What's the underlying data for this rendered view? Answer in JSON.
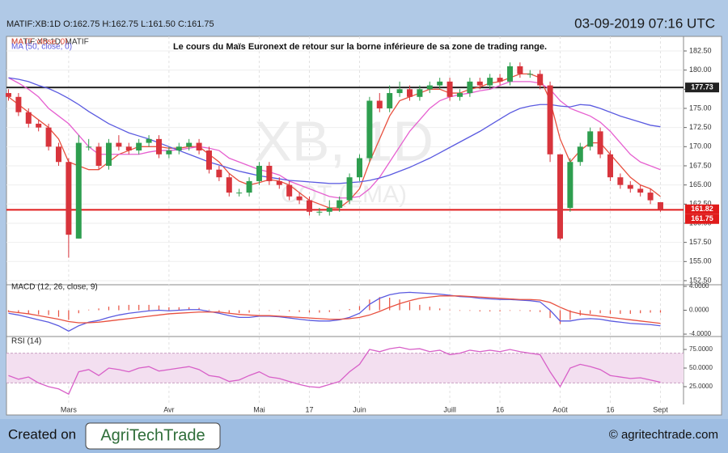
{
  "header": {
    "symbol_line": "MATIF:XB:1D O:162.75 H:162.75 L:161.50 C:161.75",
    "timestamp": "03-09-2019 07:16 UTC"
  },
  "footer": {
    "created_on": "Created on",
    "logo": "AgriTechTrade",
    "website": "© agritechtrade.com"
  },
  "chart_data": [
    {
      "type": "candlestick",
      "annotation": "Le cours du Maïs Euronext de retour sur la borne inférieure de sa zone de trading range.",
      "watermark": [
        "XB, 1D",
        "COT (EMA)"
      ],
      "legend_title": "MATIF:XB:1D, MATIF",
      "up_color": "#2e9e4f",
      "down_color": "#d8343c",
      "open": [
        177,
        176.5,
        174.5,
        173,
        172.5,
        170,
        168,
        158,
        170,
        170,
        167.5,
        170.5,
        170,
        169.5,
        170.5,
        171,
        169,
        169.5,
        170,
        170.5,
        169.5,
        167,
        166,
        164,
        164,
        165.5,
        167.5,
        165.5,
        165,
        163.5,
        163,
        161.5,
        161.5,
        162,
        163,
        166,
        168.5,
        176,
        175,
        177,
        177.5,
        176.5,
        177.5,
        178,
        178.5,
        176.5,
        177,
        178.5,
        178,
        179,
        178.5,
        180.5,
        179.5,
        179.5,
        178,
        169,
        162,
        168,
        170,
        172,
        169,
        166,
        165,
        164.5,
        164,
        162.75
      ],
      "high": [
        177.5,
        177,
        175,
        173.5,
        173,
        170.5,
        168.5,
        171.5,
        171,
        170.5,
        171,
        171.5,
        170.5,
        171,
        171.5,
        171.5,
        170,
        170.5,
        171,
        171,
        170,
        167.5,
        166.5,
        164.5,
        166,
        168,
        168,
        166,
        165.5,
        164,
        163.5,
        162,
        163,
        163.5,
        166.5,
        169,
        176.5,
        177,
        178,
        178.5,
        178,
        178,
        178.5,
        179,
        179,
        177.5,
        179,
        179,
        179.5,
        179.5,
        181,
        181,
        180,
        180,
        178.5,
        169,
        168.5,
        170.5,
        172.5,
        172.5,
        169.5,
        166.5,
        165.5,
        165,
        164.5,
        162.75
      ],
      "low": [
        176,
        174,
        172.5,
        172,
        169.5,
        167.5,
        155.5,
        158,
        169.5,
        167,
        167,
        169.5,
        169,
        169,
        170,
        168.5,
        168.5,
        169,
        169.5,
        169,
        166.5,
        165.5,
        163.5,
        163.5,
        163.5,
        165,
        165,
        164.5,
        163,
        162.5,
        161,
        161,
        161,
        161.5,
        162.5,
        165.5,
        168,
        174.5,
        174.5,
        176.5,
        176,
        176,
        177,
        177.5,
        176,
        176,
        176.5,
        177.5,
        177.5,
        178,
        178,
        179,
        179,
        177.5,
        168,
        157.8,
        161.5,
        167.5,
        169.5,
        168.5,
        165.5,
        164.5,
        164,
        163.5,
        162.5,
        161.5
      ],
      "close": [
        176.5,
        174.5,
        173,
        172.5,
        170,
        168,
        158.5,
        170.5,
        170,
        167.5,
        170.5,
        170,
        169.5,
        170.5,
        171,
        169,
        169.5,
        170,
        170.5,
        169.5,
        167,
        166,
        164,
        164,
        165.5,
        167.5,
        165.5,
        165,
        163.5,
        163,
        161.5,
        161.5,
        162,
        163,
        166,
        168.5,
        176,
        175,
        177,
        177.5,
        176.5,
        177.5,
        178,
        178.5,
        176.5,
        177,
        178.5,
        178,
        179,
        178.5,
        180.5,
        179.5,
        179.5,
        178,
        169,
        158,
        168,
        170,
        172,
        169,
        166,
        165,
        164.5,
        164,
        163,
        161.75
      ],
      "series": [
        {
          "name": "MA (7, close, 0)",
          "color": "#e8503f",
          "values": [
            176.5,
            175.5,
            174.5,
            173.5,
            172.5,
            171,
            168,
            167.5,
            167,
            167,
            168,
            169,
            169.5,
            170,
            170,
            170,
            169.8,
            169.8,
            170,
            170,
            169,
            168,
            166.5,
            165.5,
            165,
            165.3,
            165.7,
            165.5,
            165,
            164,
            163,
            162.5,
            162,
            162,
            163,
            164.5,
            168,
            171,
            174,
            176,
            176.5,
            177,
            177.5,
            177.5,
            177,
            177,
            177.5,
            177.8,
            178.3,
            178.5,
            179,
            179.5,
            179.5,
            179,
            176,
            171,
            168,
            169.5,
            170.5,
            170.5,
            169,
            167.5,
            166,
            165,
            164.5,
            163.5
          ]
        },
        {
          "color": "#e660d0",
          "values": [
            179,
            178.3,
            177.5,
            176.5,
            175,
            174,
            173,
            171.5,
            170,
            169,
            169,
            169,
            169,
            169,
            169.3,
            169.5,
            169.5,
            169.6,
            169.8,
            170,
            169.8,
            169.5,
            168.5,
            168,
            167.5,
            167,
            166.7,
            166.3,
            165.5,
            165,
            164.5,
            164,
            163.5,
            163.3,
            163.3,
            163.5,
            164.5,
            166,
            168,
            170,
            172,
            173.5,
            175,
            176,
            176.5,
            176.8,
            177,
            177.3,
            177.5,
            178,
            178.5,
            178.5,
            178.5,
            178.3,
            177.5,
            176,
            175,
            174.5,
            174,
            173.2,
            172,
            170.5,
            169,
            168,
            167.5,
            167
          ]
        },
        {
          "name": "MA (50, close, 0)",
          "color": "#5a5ae0",
          "values": [
            179,
            178.8,
            178.5,
            178,
            177.6,
            177,
            176.3,
            175.5,
            174.6,
            173.8,
            173,
            172.4,
            171.8,
            171.4,
            171,
            170.5,
            170,
            169.5,
            169,
            168.5,
            168,
            167.6,
            167.2,
            166.8,
            166.5,
            166.2,
            166,
            165.8,
            165.6,
            165.5,
            165.4,
            165.3,
            165.2,
            165.2,
            165.3,
            165.4,
            165.6,
            165.9,
            166.3,
            166.8,
            167.3,
            167.9,
            168.5,
            169.2,
            169.9,
            170.6,
            171.3,
            172,
            172.8,
            173.6,
            174.4,
            175,
            175.3,
            175.5,
            175.5,
            175.3,
            175.2,
            175.5,
            175.4,
            175,
            174.5,
            174,
            173.6,
            173.2,
            172.8,
            172.6
          ]
        }
      ],
      "hlines": [
        {
          "value": 177.73,
          "color": "#222222"
        },
        {
          "value": 161.75,
          "color": "#e01b1b"
        }
      ],
      "price_labels": [
        {
          "value": 177.73,
          "color": "#222222"
        },
        {
          "value": 161.82,
          "color": "#e01b1b"
        },
        {
          "value": 161.75,
          "color": "#e01b1b"
        }
      ],
      "xlim": [
        -0.2,
        67.3
      ],
      "xticks": [
        {
          "value": 6,
          "label": "Mars"
        },
        {
          "value": 16,
          "label": "Avr"
        },
        {
          "value": 25,
          "label": "Mai"
        },
        {
          "value": 30,
          "label": "17"
        },
        {
          "value": 35,
          "label": "Juin"
        },
        {
          "value": 44,
          "label": "Juill"
        },
        {
          "value": 49,
          "label": "16"
        },
        {
          "value": 55,
          "label": "Août"
        },
        {
          "value": 60,
          "label": "16"
        },
        {
          "value": 65,
          "label": "Sept"
        }
      ],
      "ylim": [
        152.18,
        184.4
      ],
      "yticks": [
        {
          "value": 152.5,
          "label": "152.50"
        },
        {
          "value": 155,
          "label": "155.00"
        },
        {
          "value": 157.5,
          "label": "157.50"
        },
        {
          "value": 160,
          "label": "160.00"
        },
        {
          "value": 162.5,
          "label": "162.50"
        },
        {
          "value": 165,
          "label": "165.00"
        },
        {
          "value": 167.5,
          "label": "167.50"
        },
        {
          "value": 170,
          "label": "170.00"
        },
        {
          "value": 172.5,
          "label": "172.50"
        },
        {
          "value": 175,
          "label": "175.00"
        },
        {
          "value": 177.5,
          "label": "177.50"
        },
        {
          "value": 180,
          "label": "180.00"
        },
        {
          "value": 182.5,
          "label": "182.50"
        }
      ],
      "grid": true
    },
    {
      "type": "macd",
      "title": "MACD (12, 26, close, 9)",
      "series": [
        {
          "color": "#5a5ae0",
          "values": [
            -0.5,
            -0.8,
            -1.2,
            -1.6,
            -2,
            -2.6,
            -3.5,
            -2.6,
            -2.0,
            -1.7,
            -1.2,
            -0.8,
            -0.5,
            -0.3,
            -0.1,
            0,
            -0.1,
            0,
            0.1,
            0.1,
            -0.2,
            -0.5,
            -0.9,
            -1.2,
            -1.2,
            -1.0,
            -1.0,
            -1.1,
            -1.3,
            -1.5,
            -1.7,
            -1.8,
            -1.8,
            -1.6,
            -1.2,
            -0.5,
            1,
            2,
            2.6,
            2.9,
            3,
            2.9,
            2.8,
            2.7,
            2.5,
            2.3,
            2.2,
            2.0,
            1.9,
            1.8,
            1.8,
            1.7,
            1.6,
            1.4,
            0,
            -1.8,
            -1.8,
            -1.5,
            -1.4,
            -1.5,
            -1.8,
            -2,
            -2.2,
            -2.3,
            -2.4,
            -2.6
          ]
        },
        {
          "color": "#e8503f",
          "values": [
            -0.2,
            -0.4,
            -0.6,
            -0.9,
            -1.2,
            -1.5,
            -1.9,
            -2.1,
            -2.1,
            -2.0,
            -1.8,
            -1.6,
            -1.4,
            -1.2,
            -1.0,
            -0.8,
            -0.6,
            -0.5,
            -0.4,
            -0.3,
            -0.3,
            -0.3,
            -0.5,
            -0.7,
            -0.8,
            -0.9,
            -0.9,
            -1.0,
            -1.1,
            -1.2,
            -1.3,
            -1.4,
            -1.5,
            -1.5,
            -1.4,
            -1.2,
            -0.8,
            -0.2,
            0.5,
            1.1,
            1.6,
            2,
            2.2,
            2.4,
            2.4,
            2.4,
            2.3,
            2.2,
            2.1,
            2.0,
            1.9,
            1.8,
            1.8,
            1.7,
            1.3,
            0.5,
            -0.2,
            -0.6,
            -0.8,
            -1.0,
            -1.2,
            -1.4,
            -1.6,
            -1.8,
            -2.0,
            -2.2
          ]
        }
      ],
      "histogram": {
        "color": "#e8503f",
        "values": [
          -0.3,
          -0.4,
          -0.6,
          -0.7,
          -0.8,
          -1.1,
          -1.6,
          -0.5,
          0.1,
          0.3,
          0.6,
          0.8,
          0.9,
          0.9,
          0.9,
          0.8,
          0.5,
          0.5,
          0.5,
          0.4,
          0.1,
          -0.2,
          -0.4,
          -0.5,
          -0.4,
          -0.1,
          -0.1,
          -0.1,
          -0.2,
          -0.3,
          -0.4,
          -0.4,
          -0.3,
          -0.1,
          0.2,
          0.7,
          1.8,
          2.2,
          2.1,
          1.8,
          1.4,
          0.9,
          0.6,
          0.3,
          0.1,
          -0.1,
          -0.1,
          -0.2,
          -0.2,
          -0.2,
          -0.1,
          -0.1,
          -0.2,
          -0.3,
          -1.3,
          -2.3,
          -1.6,
          -0.9,
          -0.6,
          -0.5,
          -0.6,
          -0.6,
          -0.6,
          -0.5,
          -0.4,
          -0.4
        ]
      },
      "ylim": [
        -4.4,
        4.27
      ],
      "yticks": [
        {
          "value": -4,
          "label": "-4.0000"
        },
        {
          "value": 0,
          "label": "0.0000"
        },
        {
          "value": 4,
          "label": "4.0000"
        }
      ]
    },
    {
      "type": "rsi",
      "title": "RSI (14)",
      "series": [
        {
          "color": "#d860c8",
          "values": [
            40,
            35,
            38,
            30,
            25,
            22,
            15,
            45,
            48,
            40,
            50,
            48,
            45,
            50,
            52,
            46,
            48,
            50,
            52,
            48,
            40,
            38,
            32,
            34,
            40,
            45,
            38,
            36,
            32,
            28,
            25,
            24,
            28,
            32,
            45,
            55,
            75,
            72,
            76,
            78,
            75,
            76,
            72,
            74,
            68,
            70,
            74,
            72,
            74,
            72,
            75,
            72,
            70,
            68,
            45,
            25,
            50,
            55,
            52,
            48,
            40,
            38,
            36,
            37,
            34,
            31
          ]
        }
      ],
      "band": [
        30,
        70
      ],
      "band_color": "#f3dff0",
      "ylim": [
        1.1,
        92.4
      ],
      "yticks": [
        {
          "value": 25,
          "label": "25.0000"
        },
        {
          "value": 50,
          "label": "50.0000"
        },
        {
          "value": 75,
          "label": "75.0000"
        }
      ]
    }
  ]
}
